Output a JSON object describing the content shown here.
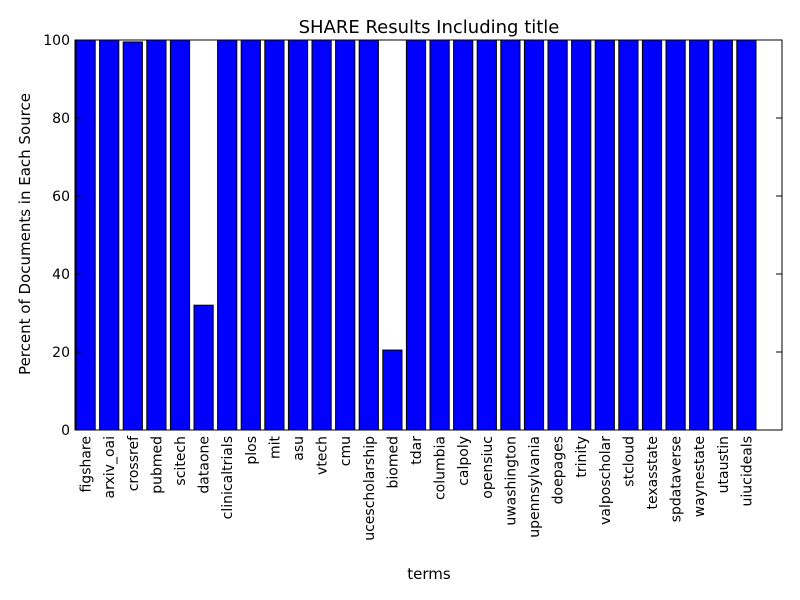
{
  "chart_data": {
    "type": "bar",
    "title": "SHARE Results Including title",
    "xlabel": "terms",
    "ylabel": "Percent of Documents in Each Source",
    "ylim": [
      0,
      100
    ],
    "yticks": [
      0,
      20,
      40,
      60,
      80,
      100
    ],
    "grid": false,
    "legend": "none",
    "bar_color": "#0000ff",
    "categories": [
      "figshare",
      "arxiv_oai",
      "crossref",
      "pubmed",
      "scitech",
      "dataone",
      "clinicaltrials",
      "plos",
      "mit",
      "asu",
      "vtech",
      "cmu",
      "ucescholarship",
      "biomed",
      "tdar",
      "columbia",
      "calpoly",
      "opensiuc",
      "uwashington",
      "upennsylvania",
      "doepages",
      "trinity",
      "valposcholar",
      "stcloud",
      "texasstate",
      "spdataverse",
      "waynestate",
      "utaustin",
      "uiucideals"
    ],
    "values": [
      100,
      100,
      99.5,
      100,
      100,
      32,
      100,
      100,
      100,
      100,
      100,
      100,
      100,
      20.5,
      100,
      100,
      100,
      100,
      100,
      100,
      100,
      100,
      100,
      100,
      100,
      100,
      100,
      100,
      100
    ]
  }
}
